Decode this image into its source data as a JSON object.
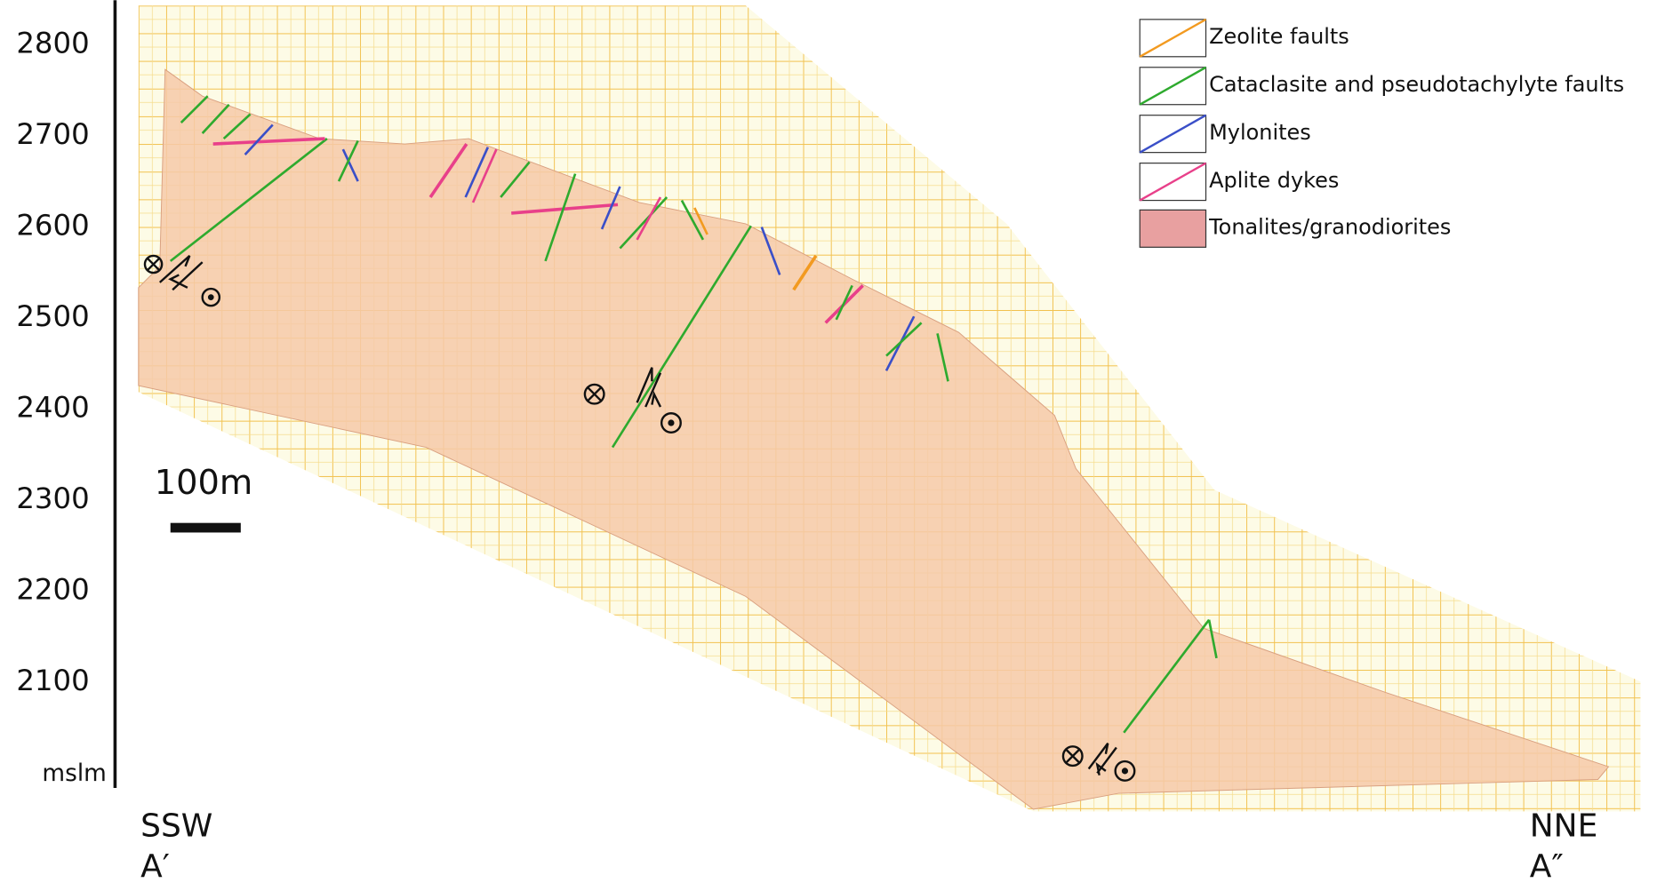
{
  "elevation_axis": {
    "ticks": [
      "2800",
      "2700",
      "2600",
      "2500",
      "2400",
      "2300",
      "2200",
      "2100"
    ],
    "unit": "mslm"
  },
  "scale_bar": "100m",
  "ends": {
    "left": {
      "direction": "SSW",
      "label": "A′"
    },
    "right": {
      "direction": "NNE",
      "label": "A″"
    }
  },
  "legend": [
    "Zeolite faults",
    "Cataclasite and pseudotachylyte faults",
    "Mylonites",
    "Aplite dykes",
    "Tonalites/granodiorites"
  ]
}
